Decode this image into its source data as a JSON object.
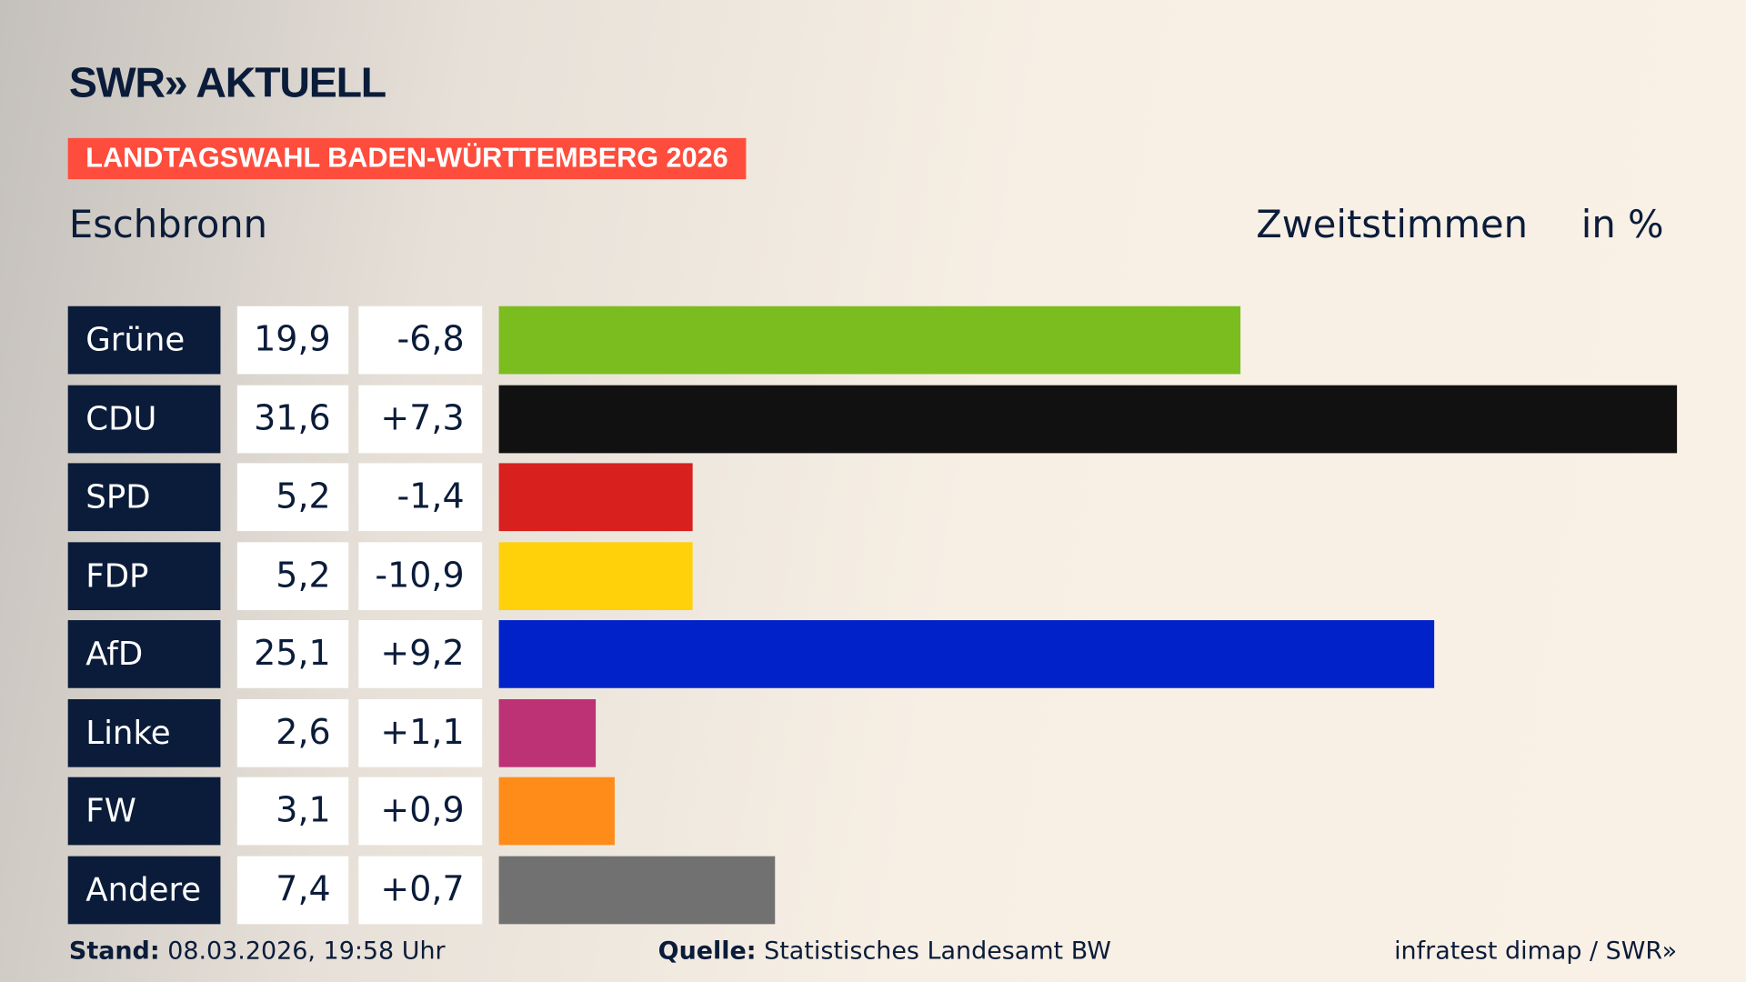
{
  "header": {
    "logo": "SWR» AKTUELL",
    "banner": "LANDTAGSWAHL BADEN-WÜRTTEMBERG 2026",
    "place": "Eschbronn",
    "metric": "Zweitstimmen",
    "unit": "in %"
  },
  "chart_data": {
    "type": "bar",
    "orientation": "horizontal",
    "categories": [
      "Grüne",
      "CDU",
      "SPD",
      "FDP",
      "AfD",
      "Linke",
      "FW",
      "Andere"
    ],
    "values": [
      19.9,
      31.6,
      5.2,
      5.2,
      25.1,
      2.6,
      3.1,
      7.4
    ],
    "value_labels": [
      "19,9",
      "31,6",
      "5,2",
      "5,2",
      "25,1",
      "2,6",
      "3,1",
      "7,4"
    ],
    "diffs": [
      -6.8,
      7.3,
      -1.4,
      -10.9,
      9.2,
      1.1,
      0.9,
      0.7
    ],
    "diff_labels": [
      "-6,8",
      "+7,3",
      "-1,4",
      "-10,9",
      "+9,2",
      "+1,1",
      "+0,9",
      "+0,7"
    ],
    "colors": [
      "#7bbd1f",
      "#111111",
      "#d8201f",
      "#ffd10a",
      "#0022c8",
      "#bd3175",
      "#ff8c19",
      "#717171"
    ],
    "xlim": [
      0,
      31.6
    ]
  },
  "footer": {
    "stand_label": "Stand:",
    "stand": "08.03.2026, 19:58 Uhr",
    "source_label": "Quelle:",
    "source": "Statistisches Landesamt BW",
    "credit": "infratest dimap / SWR»"
  }
}
